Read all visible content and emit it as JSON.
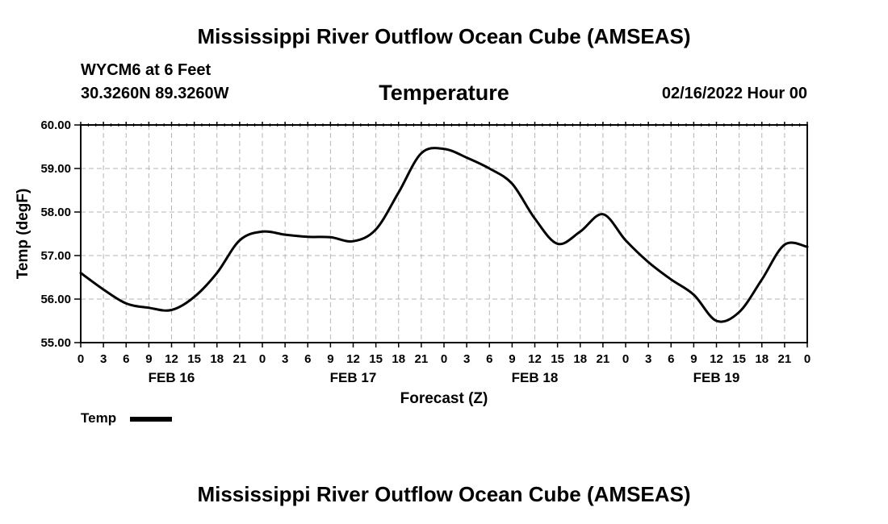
{
  "header": {
    "title": "Mississippi River Outflow Ocean Cube (AMSEAS)",
    "station": "WYCM6 at 6 Feet",
    "coords": "30.3260N  89.3260W",
    "variable": "Temperature",
    "run_time": "02/16/2022 Hour 00"
  },
  "footer": {
    "title": "Mississippi River Outflow Ocean Cube (AMSEAS)"
  },
  "legend": {
    "label": "Temp",
    "color": "#000000"
  },
  "chart_data": {
    "type": "line",
    "title": "Temperature",
    "xlabel": "Forecast (Z)",
    "ylabel": "Temp (degF)",
    "xlim": [
      0,
      96
    ],
    "ylim": [
      55.0,
      60.0
    ],
    "y_ticks": [
      "55.00",
      "56.00",
      "57.00",
      "58.00",
      "59.00",
      "60.00"
    ],
    "x_tick_labels": [
      "0",
      "3",
      "6",
      "9",
      "12",
      "15",
      "18",
      "21",
      "0",
      "3",
      "6",
      "9",
      "12",
      "15",
      "18",
      "21",
      "0",
      "3",
      "6",
      "9",
      "12",
      "15",
      "18",
      "21",
      "0",
      "3",
      "6",
      "9",
      "12",
      "15",
      "18",
      "21",
      "0"
    ],
    "day_labels": [
      {
        "hour": 12,
        "label": "FEB 16"
      },
      {
        "hour": 36,
        "label": "FEB 17"
      },
      {
        "hour": 60,
        "label": "FEB 18"
      },
      {
        "hour": 84,
        "label": "FEB 19"
      }
    ],
    "grid": true,
    "series": [
      {
        "name": "Temp",
        "x": [
          0,
          3,
          6,
          9,
          12,
          15,
          18,
          21,
          24,
          27,
          30,
          33,
          36,
          39,
          42,
          45,
          48,
          51,
          54,
          57,
          60,
          63,
          66,
          69,
          72,
          75,
          78,
          81,
          84,
          87,
          90,
          93,
          96
        ],
        "values": [
          56.6,
          56.22,
          55.9,
          55.8,
          55.75,
          56.05,
          56.6,
          57.35,
          57.55,
          57.48,
          57.43,
          57.42,
          57.33,
          57.6,
          58.45,
          59.35,
          59.45,
          59.25,
          59.0,
          58.65,
          57.85,
          57.27,
          57.55,
          57.95,
          57.35,
          56.85,
          56.45,
          56.1,
          55.5,
          55.7,
          56.45,
          57.25,
          57.2
        ]
      }
    ]
  }
}
